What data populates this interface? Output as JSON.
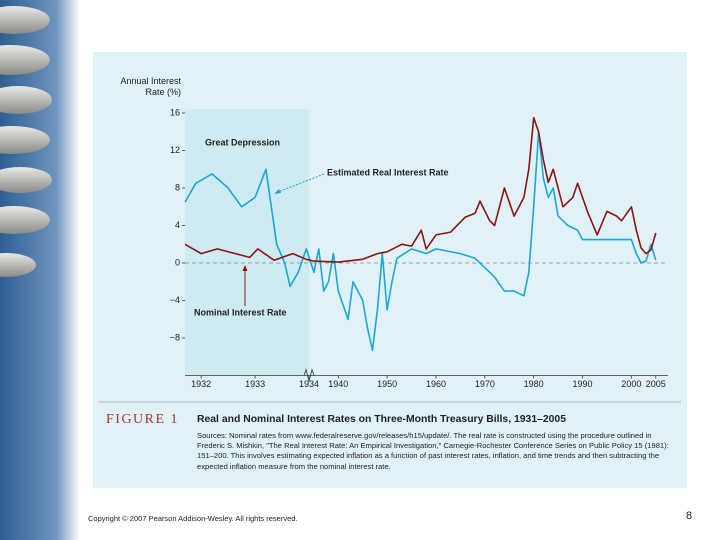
{
  "chart_data": {
    "type": "line",
    "y_label": "Annual Interest Rate (%)",
    "ylim": [
      -12,
      16
    ],
    "yticks": [
      16,
      12,
      8,
      4,
      0,
      {
        "value": -4,
        "label": "−4"
      },
      {
        "value": -8,
        "label": "−8"
      }
    ],
    "xlim": [
      1931.7,
      2007.5
    ],
    "xticks": [
      1932,
      1933,
      1934,
      1940,
      1950,
      1960,
      1970,
      1980,
      1990,
      2000,
      2005
    ],
    "x_axis_break": 1934,
    "zero_line": true,
    "highlight": {
      "label": "Great Depression",
      "from": 1931.7,
      "to": 1934
    },
    "series": [
      {
        "name": "Estimated Real Interest Rate",
        "color": "#1ba6dd",
        "x": [
          1931.7,
          1931.9,
          1932.2,
          1932.5,
          1932.75,
          1933.0,
          1933.2,
          1933.3,
          1933.4,
          1933.55,
          1933.65,
          1933.8,
          1933.95,
          1935,
          1936,
          1937,
          1938,
          1939,
          1940,
          1942,
          1943,
          1945,
          1946,
          1947,
          1948,
          1949,
          1950,
          1951,
          1952,
          1955,
          1958,
          1960,
          1965,
          1968,
          1970,
          1972,
          1974,
          1976,
          1978,
          1979,
          1980,
          1981,
          1982,
          1983,
          1984,
          1985,
          1987,
          1989,
          1990,
          1992,
          1995,
          1998,
          2000,
          2001,
          2002,
          2003,
          2004,
          2005
        ],
        "values": [
          6.5,
          8.5,
          9.5,
          8,
          6,
          7,
          10,
          6,
          2,
          0,
          -2.5,
          -1,
          1.5,
          -1,
          1.5,
          -3,
          -2,
          1,
          -3,
          -6,
          -2,
          -4,
          -7,
          -9.3,
          -5,
          1,
          -5,
          -2,
          0.5,
          1.5,
          1,
          1.5,
          1,
          0.5,
          -0.5,
          -1.5,
          -3,
          -3,
          -3.5,
          -1,
          6,
          14,
          9,
          7,
          8,
          5,
          4,
          3.5,
          2.5,
          2.5,
          2.5,
          2.5,
          2.5,
          1,
          0,
          0.2,
          2,
          0.3
        ]
      },
      {
        "name": "Nominal Interest Rate",
        "color": "#8b1414",
        "x": [
          1931.7,
          1932.0,
          1932.3,
          1932.9,
          1933.05,
          1933.35,
          1933.7,
          1933.95,
          1935,
          1940,
          1945,
          1948,
          1950,
          1953,
          1955,
          1957,
          1958,
          1960,
          1963,
          1966,
          1968,
          1969,
          1971,
          1972,
          1974,
          1976,
          1978,
          1979,
          1980,
          1981,
          1982,
          1983,
          1984,
          1986,
          1988,
          1989,
          1991,
          1993,
          1995,
          1997,
          1998,
          2000,
          2001,
          2002,
          2003,
          2004,
          2005
        ],
        "values": [
          2,
          1,
          1.5,
          0.6,
          1.5,
          0.3,
          1,
          0.4,
          0.2,
          0.1,
          0.4,
          1,
          1.2,
          2,
          1.8,
          3.5,
          1.5,
          3,
          3.3,
          4.9,
          5.3,
          6.6,
          4.5,
          4,
          8,
          5,
          7,
          10,
          15.5,
          14,
          11,
          8.6,
          10,
          6,
          7,
          8.5,
          5.5,
          3,
          5.5,
          5,
          4.5,
          6,
          3.5,
          1.6,
          1,
          1.4,
          3.2
        ]
      }
    ],
    "figure_number": "FIGURE 1",
    "title": "Real and Nominal Interest Rates on Three-Month Treasury Bills, 1931–2005",
    "sources": "Sources: Nominal rates from www.federalreserve.gov/releases/h15/update/. The real rate is constructed using the procedure outlined in Frederic S. Mishkin, \"The Real Interest Rate: An Empirical Investigation,\" Carnegie-Rochester Conference Series on Public Policy 15 (1981): 151–200. This involves estimating expected inflation as a function of past interest rates, inflation, and time trends and then subtracting the expected inflation measure from the nominal interest rate."
  },
  "footer": {
    "copyright": "Copyright © 2007 Pearson Addison-Wesley. All rights reserved.",
    "page_number": "8"
  }
}
